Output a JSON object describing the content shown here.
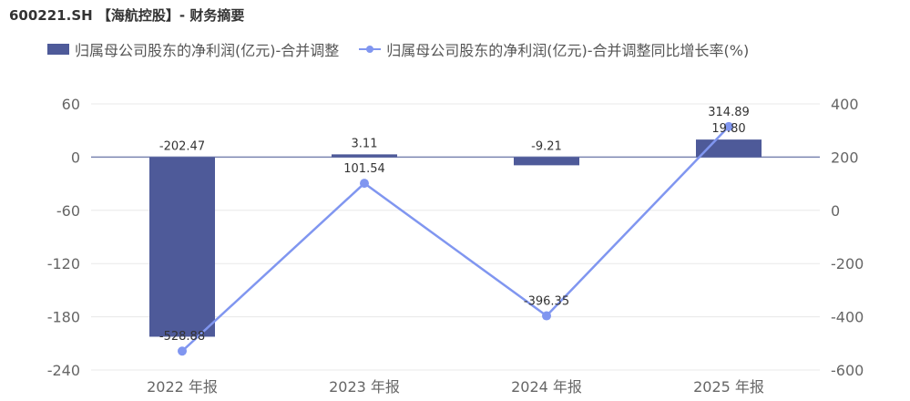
{
  "title": "600221.SH 【海航控股】- 财务摘要",
  "colors": {
    "bar": "#4e5a99",
    "line": "#8096f0",
    "grid": "#e8e8e8",
    "zero": "#7a84b0"
  },
  "chart_data": {
    "type": "bar",
    "categories": [
      "2022 年报",
      "2023 年报",
      "2024 年报",
      "2025 年报"
    ],
    "series": [
      {
        "name": "归属母公司股东的净利润(亿元)-合并调整",
        "type": "bar",
        "axis": "left",
        "values": [
          -202.47,
          3.11,
          -9.21,
          19.8
        ],
        "labels": [
          "-202.47",
          "3.11",
          "-9.21",
          "19.80"
        ]
      },
      {
        "name": "归属母公司股东的净利润(亿元)-合并调整同比增长率(%)",
        "type": "line",
        "axis": "right",
        "values": [
          -528.88,
          101.54,
          -396.35,
          314.89
        ],
        "labels": [
          "-528.88",
          "101.54",
          "-396.35",
          "314.89"
        ]
      }
    ],
    "y_left": {
      "range": [
        -240,
        60
      ],
      "ticks": [
        "60",
        "0",
        "-60",
        "-120",
        "-180",
        "-240"
      ]
    },
    "y_right": {
      "range": [
        -600,
        400
      ],
      "ticks": [
        "400",
        "200",
        "0",
        "-200",
        "-400",
        "-600"
      ]
    },
    "grid": true,
    "legend_position": "top-left"
  }
}
